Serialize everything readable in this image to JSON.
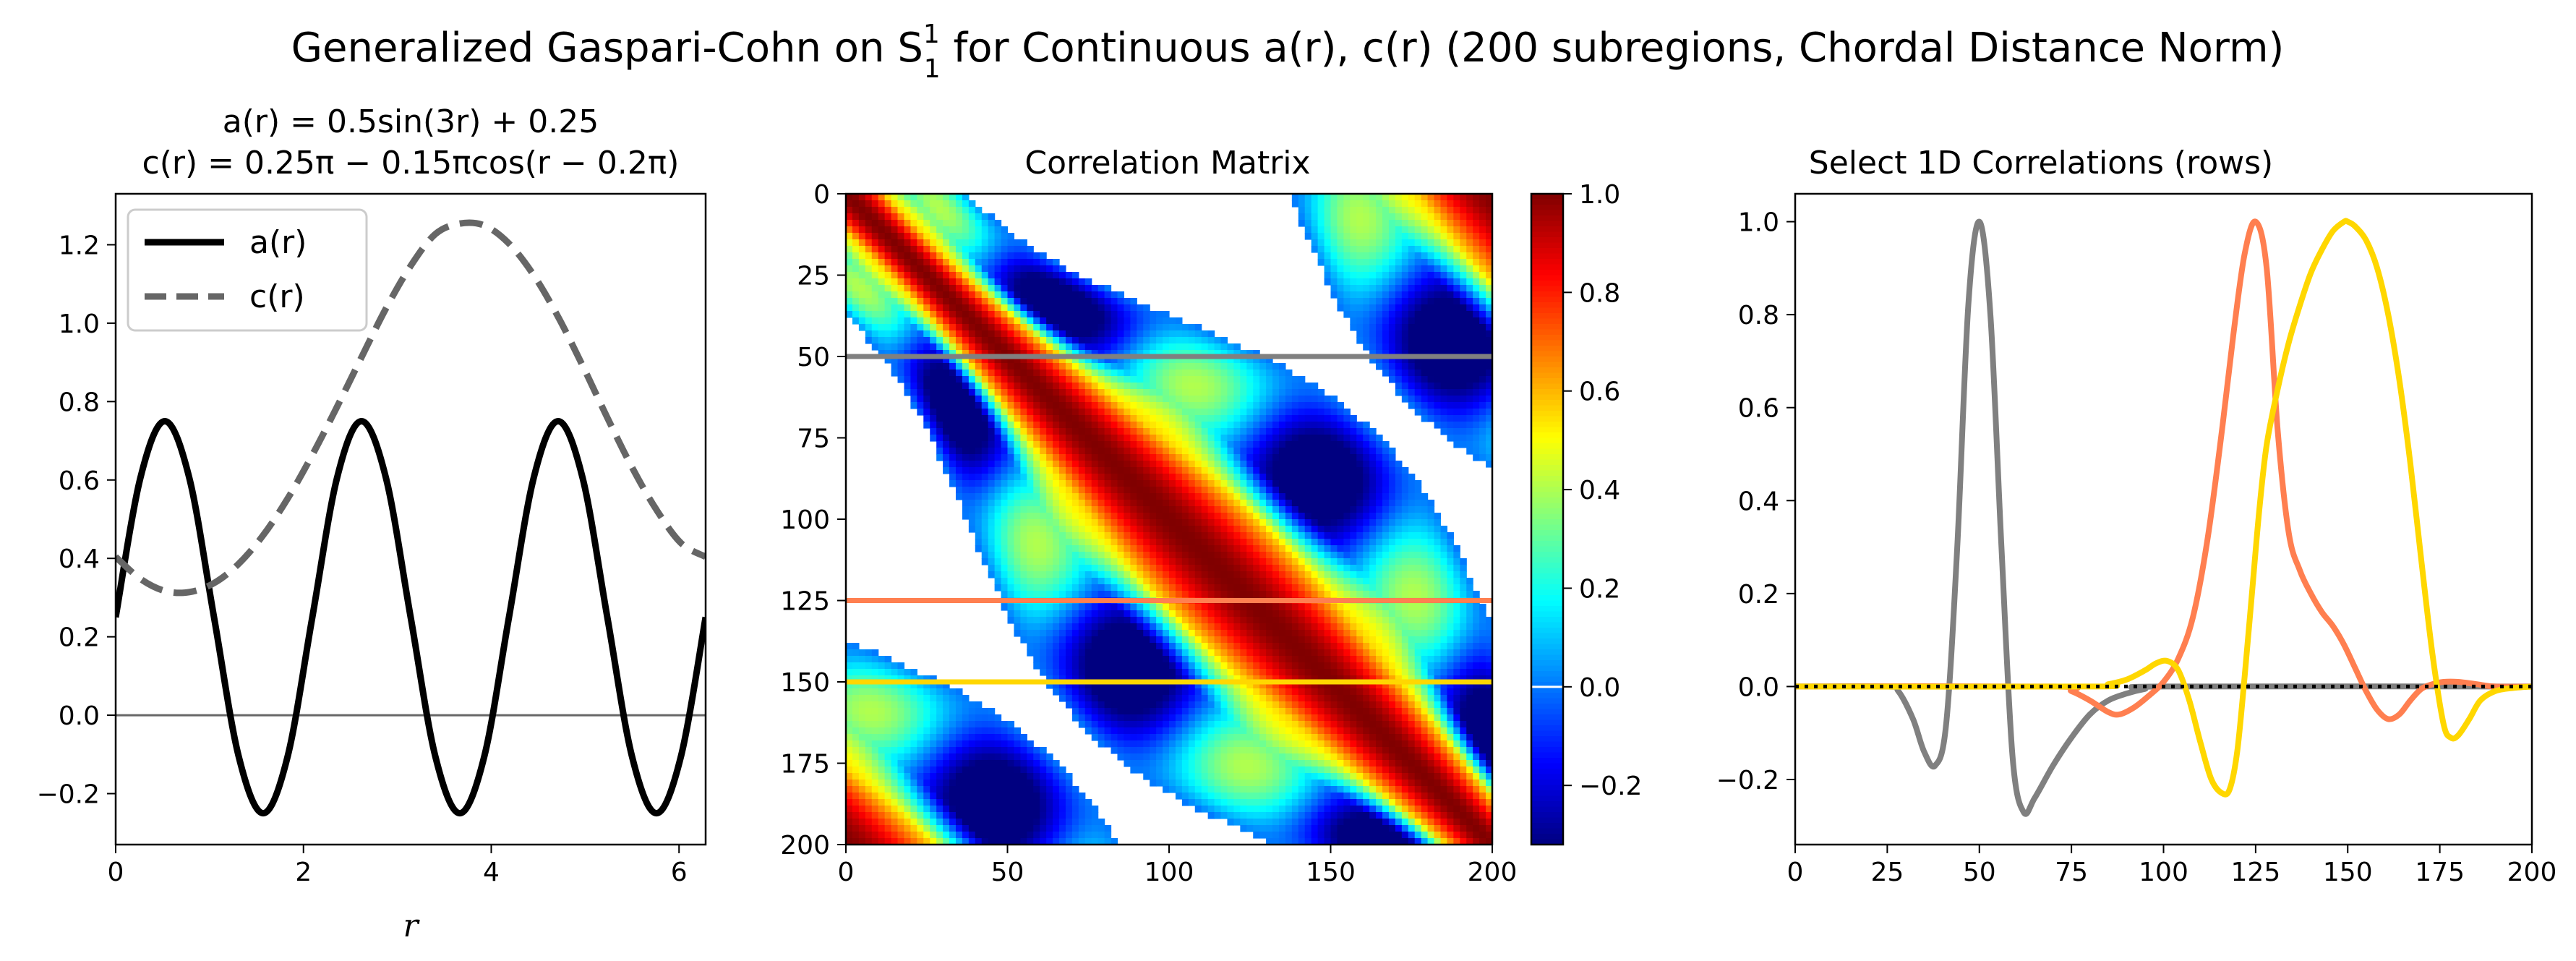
{
  "figure": {
    "title": "Generalized Gaspari-Cohn on S",
    "title_sup": "1",
    "title_sub": "1",
    "title_rest": " for Continuous a(r), c(r) (200 subregions, Chordal Distance Norm)"
  },
  "chart_data": [
    {
      "type": "line",
      "title_line1": "a(r) = 0.5sin(3r) + 0.25",
      "title_line2": "c(r) = 0.25π − 0.15πcos(r − 0.2π)",
      "xlabel": "r",
      "ylabel": "",
      "xlim": [
        0,
        6.2832
      ],
      "ylim": [
        -0.33,
        1.33
      ],
      "xticks": [
        0,
        2,
        4,
        6
      ],
      "yticks": [
        -0.2,
        0.0,
        0.2,
        0.4,
        0.6,
        0.8,
        1.0,
        1.2
      ],
      "xtick_labels": [
        "0",
        "2",
        "4",
        "6"
      ],
      "ytick_labels": [
        "−0.2",
        "0.0",
        "0.2",
        "0.4",
        "0.6",
        "0.8",
        "1.0",
        "1.2"
      ],
      "grid": false,
      "legend_position": "top-left",
      "reference_line_y": 0,
      "series": [
        {
          "name": "a(r)",
          "color": "#000000",
          "style": "solid",
          "x": [
            0,
            0.2618,
            0.5236,
            0.7854,
            1.0472,
            1.309,
            1.5708,
            1.8326,
            2.0944,
            2.3562,
            2.618,
            2.8798,
            3.1416,
            3.4034,
            3.6652,
            3.927,
            4.1888,
            4.4506,
            4.7124,
            4.9742,
            5.236,
            5.4978,
            5.7596,
            6.0214,
            6.2832
          ],
          "y": [
            0.25,
            0.604,
            0.75,
            0.604,
            0.25,
            -0.104,
            -0.25,
            -0.104,
            0.25,
            0.604,
            0.75,
            0.604,
            0.25,
            -0.104,
            -0.25,
            -0.104,
            0.25,
            0.604,
            0.75,
            0.604,
            0.25,
            -0.104,
            -0.25,
            -0.104,
            0.25
          ]
        },
        {
          "name": "c(r)",
          "color": "#666666",
          "style": "dashed",
          "x": [
            0,
            0.2618,
            0.5236,
            0.7854,
            1.0472,
            1.309,
            1.5708,
            1.8326,
            2.0944,
            2.3562,
            2.618,
            2.8798,
            3.1416,
            3.4034,
            3.6652,
            3.927,
            4.1888,
            4.4506,
            4.7124,
            4.9742,
            5.236,
            5.4978,
            5.7596,
            6.0214,
            6.2832
          ],
          "y": [
            0.404,
            0.348,
            0.317,
            0.314,
            0.337,
            0.386,
            0.459,
            0.553,
            0.664,
            0.786,
            0.913,
            1.038,
            1.146,
            1.227,
            1.254,
            1.249,
            1.203,
            1.123,
            1.016,
            0.891,
            0.759,
            0.633,
            0.524,
            0.439,
            0.404
          ]
        }
      ]
    },
    {
      "type": "heatmap",
      "title": "Correlation Matrix",
      "xlabel": "",
      "ylabel": "",
      "size": 200,
      "xlim": [
        0,
        200
      ],
      "ylim": [
        200,
        0
      ],
      "xticks": [
        0,
        50,
        100,
        150,
        200
      ],
      "yticks": [
        0,
        25,
        50,
        75,
        100,
        125,
        150,
        175,
        200
      ],
      "xtick_labels": [
        "0",
        "50",
        "100",
        "150",
        "200"
      ],
      "ytick_labels": [
        "0",
        "25",
        "50",
        "75",
        "100",
        "125",
        "150",
        "175",
        "200"
      ],
      "colormap": "jet",
      "vmin": -0.32,
      "vmax": 1.0,
      "colorbar_ticks": [
        -0.2,
        0.0,
        0.2,
        0.4,
        0.6,
        0.8,
        1.0
      ],
      "colorbar_tick_labels": [
        "−0.2",
        "0.0",
        "0.2",
        "0.4",
        "0.6",
        "0.8",
        "1.0"
      ],
      "highlight_rows": [
        {
          "row": 50,
          "color": "#808080"
        },
        {
          "row": 125,
          "color": "#ff7f50"
        },
        {
          "row": 150,
          "color": "#ffd700"
        }
      ]
    },
    {
      "type": "line",
      "title": "Select 1D Correlations (rows)",
      "xlabel": "",
      "ylabel": "",
      "xlim": [
        0,
        200
      ],
      "ylim": [
        -0.34,
        1.06
      ],
      "xticks": [
        0,
        25,
        50,
        75,
        100,
        125,
        150,
        175,
        200
      ],
      "yticks": [
        -0.2,
        0.0,
        0.2,
        0.4,
        0.6,
        0.8,
        1.0
      ],
      "xtick_labels": [
        "0",
        "25",
        "50",
        "75",
        "100",
        "125",
        "150",
        "175",
        "200"
      ],
      "ytick_labels": [
        "−0.2",
        "0.0",
        "0.2",
        "0.4",
        "0.6",
        "0.8",
        "1.0"
      ],
      "grid": false,
      "reference_line_y": 0,
      "series": [
        {
          "color": "#808080",
          "x": [
            0,
            25,
            28,
            32,
            35,
            38,
            41,
            44,
            47,
            50,
            53,
            56,
            59,
            62,
            65,
            70,
            75,
            80,
            85,
            90,
            95,
            100,
            200
          ],
          "y": [
            0,
            0,
            -0.01,
            -0.07,
            -0.14,
            -0.17,
            -0.08,
            0.3,
            0.82,
            1.0,
            0.8,
            0.3,
            -0.15,
            -0.27,
            -0.24,
            -0.17,
            -0.11,
            -0.06,
            -0.03,
            -0.015,
            -0.005,
            0,
            0
          ]
        },
        {
          "color": "#ff7f50",
          "x": [
            0,
            70,
            75,
            80,
            85,
            88,
            92,
            96,
            100,
            104,
            108,
            112,
            116,
            119,
            122,
            125,
            128,
            131,
            134,
            137,
            140,
            143,
            146,
            149,
            152,
            155,
            158,
            161,
            164,
            167,
            170,
            173,
            176,
            180,
            185,
            190,
            200
          ],
          "y": [
            0,
            0,
            -0.01,
            -0.03,
            -0.055,
            -0.06,
            -0.045,
            -0.02,
            0.01,
            0.06,
            0.15,
            0.32,
            0.56,
            0.76,
            0.93,
            1.0,
            0.9,
            0.55,
            0.33,
            0.25,
            0.2,
            0.16,
            0.13,
            0.09,
            0.04,
            -0.01,
            -0.05,
            -0.07,
            -0.06,
            -0.03,
            -0.005,
            0.005,
            0.01,
            0.01,
            0.005,
            0,
            0
          ]
        },
        {
          "color": "#ffd700",
          "x": [
            0,
            80,
            85,
            90,
            95,
            98,
            101,
            104,
            107,
            110,
            113,
            116,
            118,
            120,
            122,
            124,
            126,
            128,
            131,
            134,
            137,
            140,
            143,
            146,
            149,
            150,
            152,
            155,
            158,
            161,
            164,
            167,
            170,
            173,
            176,
            178,
            180,
            183,
            186,
            190,
            195,
            200
          ],
          "y": [
            0,
            0,
            0.005,
            0.015,
            0.035,
            0.05,
            0.055,
            0.035,
            -0.03,
            -0.12,
            -0.2,
            -0.23,
            -0.22,
            -0.14,
            0.02,
            0.2,
            0.38,
            0.52,
            0.64,
            0.74,
            0.82,
            0.89,
            0.94,
            0.98,
            1.0,
            1.0,
            0.99,
            0.96,
            0.9,
            0.8,
            0.66,
            0.48,
            0.27,
            0.07,
            -0.08,
            -0.11,
            -0.105,
            -0.07,
            -0.03,
            -0.01,
            -0.003,
            0
          ]
        }
      ]
    }
  ]
}
